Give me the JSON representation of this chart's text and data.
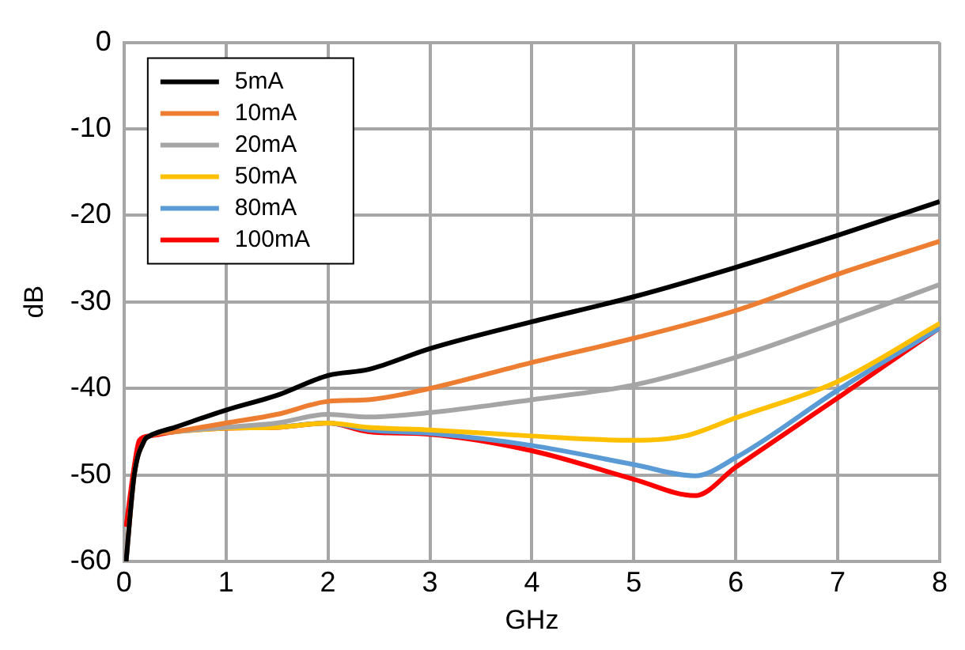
{
  "chart_data": {
    "type": "line",
    "xlabel": "GHz",
    "ylabel": "dB",
    "xlim": [
      0,
      8
    ],
    "ylim": [
      -60,
      0
    ],
    "xticks": [
      0,
      1,
      2,
      3,
      4,
      5,
      6,
      7,
      8
    ],
    "yticks": [
      -60,
      -50,
      -40,
      -30,
      -20,
      -10,
      0
    ],
    "grid": true,
    "legend": "top left",
    "marker": "none",
    "line_style": "solid",
    "series": [
      {
        "name": "5mA",
        "color": "#000000",
        "x": [
          0.02,
          0.1,
          0.2,
          0.25,
          0.5,
          1,
          1.5,
          2,
          2.4,
          3,
          4,
          5,
          6,
          7,
          8
        ],
        "values": [
          -60,
          -50,
          -46,
          -45.5,
          -44.5,
          -42.5,
          -40.8,
          -38.5,
          -37.8,
          -35.4,
          -32.3,
          -29.4,
          -26,
          -22.3,
          -18.4
        ]
      },
      {
        "name": "10mA",
        "color": "#ed7d31",
        "x": [
          0.02,
          0.1,
          0.2,
          0.25,
          0.5,
          1,
          1.5,
          2,
          2.4,
          3,
          4,
          5,
          6,
          7,
          8
        ],
        "values": [
          -60,
          -50,
          -46,
          -45.5,
          -45,
          -44,
          -43,
          -41.5,
          -41.3,
          -40,
          -37,
          -34.2,
          -31,
          -26.8,
          -23
        ]
      },
      {
        "name": "20mA",
        "color": "#a5a5a5",
        "x": [
          0.02,
          0.1,
          0.2,
          0.25,
          0.5,
          1,
          1.5,
          2,
          2.4,
          3,
          4,
          5,
          6,
          7,
          8
        ],
        "values": [
          -60,
          -50,
          -46,
          -45.5,
          -45,
          -44.5,
          -44,
          -43,
          -43.3,
          -42.8,
          -41.3,
          -39.6,
          -36.4,
          -32.3,
          -28
        ]
      },
      {
        "name": "50mA",
        "color": "#ffc000",
        "x": [
          0.5,
          1,
          1.5,
          2,
          2.4,
          3,
          4,
          5,
          5.5,
          6,
          7,
          8
        ],
        "values": [
          -45,
          -44.6,
          -44.5,
          -44,
          -44.5,
          -44.8,
          -45.5,
          -46,
          -45.5,
          -43.4,
          -39.2,
          -32.5
        ]
      },
      {
        "name": "80mA",
        "color": "#5b9bd5",
        "x": [
          1.5,
          2,
          2.4,
          3,
          4,
          5,
          5.6,
          6,
          7,
          8
        ],
        "values": [
          -44.5,
          -44,
          -44.8,
          -45.2,
          -46.6,
          -48.8,
          -50.1,
          -48,
          -40.2,
          -33
        ]
      },
      {
        "name": "100mA",
        "color": "#ff0000",
        "x": [
          0.02,
          0.1,
          0.15,
          0.25,
          0.5,
          1,
          1.5,
          2,
          2.4,
          3,
          4,
          5,
          5.6,
          6,
          7,
          8
        ],
        "values": [
          -56,
          -49,
          -46,
          -45.5,
          -45,
          -44.6,
          -44.5,
          -44,
          -45,
          -45.3,
          -47.2,
          -50.5,
          -52.4,
          -49.1,
          -41.1,
          -33
        ]
      }
    ]
  }
}
